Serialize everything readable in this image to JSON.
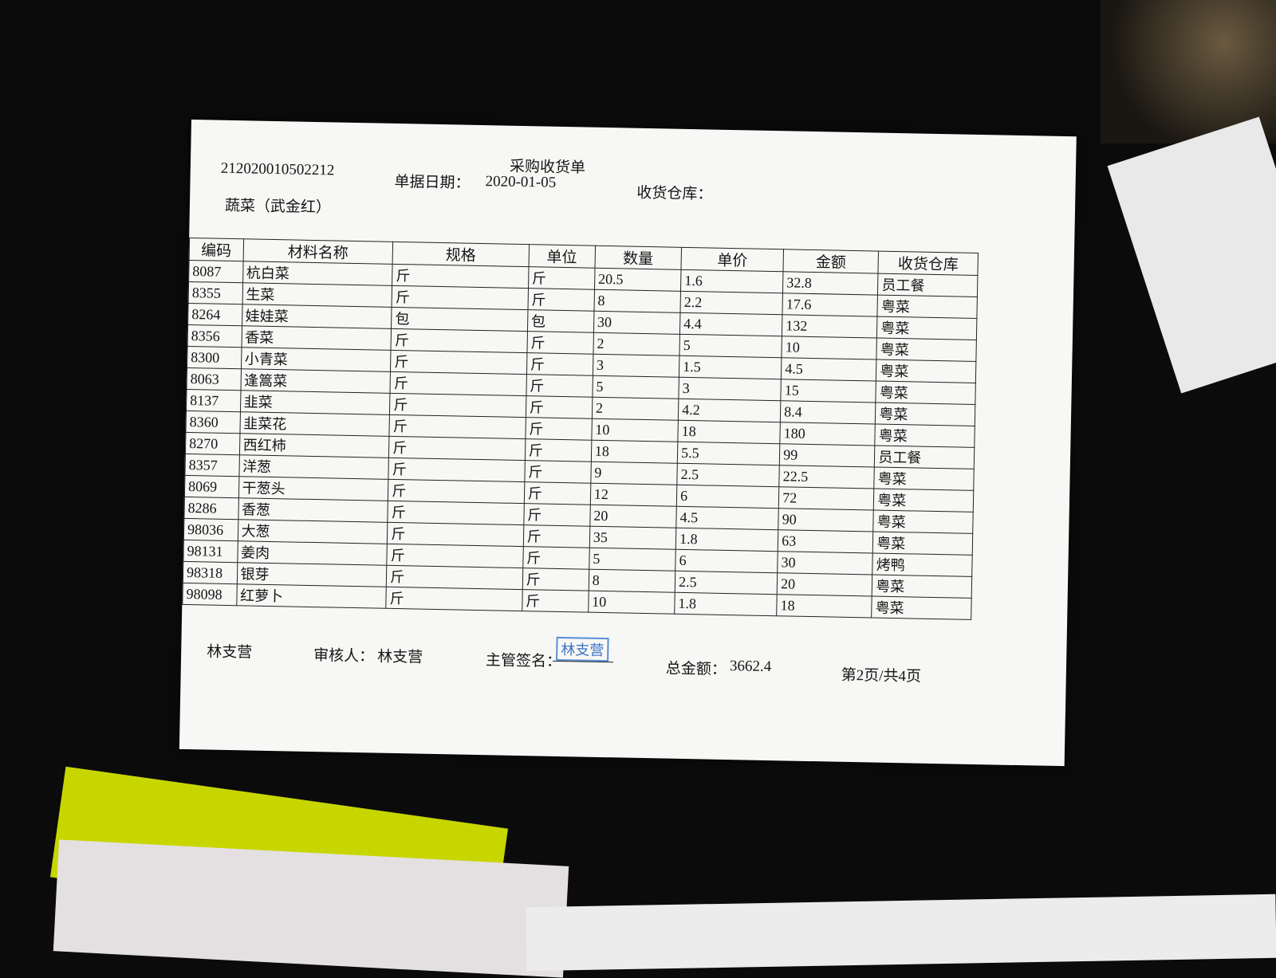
{
  "header": {
    "doc_number": "212020010502212",
    "title": "采购收货单",
    "date_label": "单据日期：",
    "date": "2020-01-05",
    "warehouse_label": "收货仓库：",
    "supplier": "蔬菜（武金红）"
  },
  "table": {
    "columns": [
      "编码",
      "材料名称",
      "规格",
      "单位",
      "数量",
      "单价",
      "金额",
      "收货仓库"
    ],
    "rows": [
      [
        "8087",
        "杭白菜",
        "斤",
        "斤",
        20.5,
        1.6,
        32.8,
        "员工餐"
      ],
      [
        "8355",
        "生菜",
        "斤",
        "斤",
        8,
        2.2,
        17.6,
        "粤菜"
      ],
      [
        "8264",
        "娃娃菜",
        "包",
        "包",
        30,
        4.4,
        132,
        "粤菜"
      ],
      [
        "8356",
        "香菜",
        "斤",
        "斤",
        2,
        5,
        10,
        "粤菜"
      ],
      [
        "8300",
        "小青菜",
        "斤",
        "斤",
        3,
        1.5,
        4.5,
        "粤菜"
      ],
      [
        "8063",
        "逢篙菜",
        "斤",
        "斤",
        5,
        3,
        15,
        "粤菜"
      ],
      [
        "8137",
        "韭菜",
        "斤",
        "斤",
        2,
        4.2,
        8.4,
        "粤菜"
      ],
      [
        "8360",
        "韭菜花",
        "斤",
        "斤",
        10,
        18,
        180,
        "粤菜"
      ],
      [
        "8270",
        "西红柿",
        "斤",
        "斤",
        18,
        5.5,
        99,
        "员工餐"
      ],
      [
        "8357",
        "洋葱",
        "斤",
        "斤",
        9,
        2.5,
        22.5,
        "粤菜"
      ],
      [
        "8069",
        "干葱头",
        "斤",
        "斤",
        12,
        6,
        72,
        "粤菜"
      ],
      [
        "8286",
        "香葱",
        "斤",
        "斤",
        20,
        4.5,
        90,
        "粤菜"
      ],
      [
        "98036",
        "大葱",
        "斤",
        "斤",
        35,
        1.8,
        63,
        "粤菜"
      ],
      [
        "98131",
        "姜肉",
        "斤",
        "斤",
        5,
        6,
        30,
        "烤鸭"
      ],
      [
        "98318",
        "银芽",
        "斤",
        "斤",
        8,
        2.5,
        20,
        "粤菜"
      ],
      [
        "98098",
        "红萝卜",
        "斤",
        "斤",
        10,
        1.8,
        18,
        "粤菜"
      ]
    ]
  },
  "footer": {
    "maker": "林支营",
    "reviewer_label": "审核人：",
    "reviewer": "林支营",
    "supervisor_label": "主管签名：",
    "stamp": "林支营",
    "total_label": "总金额：",
    "total": 3662.4,
    "page": "第2页/共4页"
  }
}
